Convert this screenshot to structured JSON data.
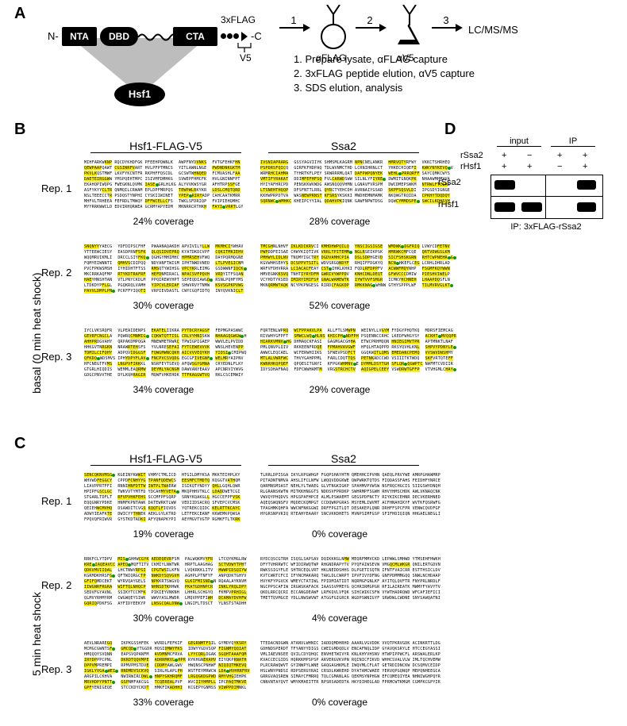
{
  "labels": {
    "A": "A",
    "B": "B",
    "C": "C",
    "D": "D"
  },
  "panelA": {
    "domains": [
      "NTA",
      "DBD",
      "CTA"
    ],
    "tag": "3xFLAG",
    "v5": "V5",
    "N": "N-",
    "C": "-C",
    "hsf1": "Hsf1",
    "beads": {
      "flag": "αFLAG",
      "v5": "αV5"
    },
    "out": "LC/MS/MS",
    "steps": [
      "1",
      "2",
      "3"
    ],
    "legend": [
      "1. Prepare lysate, αFLAG capture",
      "2. 3xFLAG peptide elution, αV5 capture",
      "3. SDS elution, analysis"
    ]
  },
  "panelB": {
    "side": "basal (0 min heat shock)",
    "col1": "Hsf1-FLAG-V5",
    "col2": "Ssa2",
    "reps": [
      "Rep. 1",
      "Rep. 2",
      "Rep. 3"
    ],
    "coverage": {
      "hsf1": [
        "24% coverage",
        "30% coverage",
        "34% coverage"
      ],
      "ssa2": [
        "28% coverage",
        "52% coverage",
        "29% coverage"
      ]
    }
  },
  "panelC": {
    "side": "5 min heat shock",
    "col1": "Hsf1-FLAG-V5",
    "col2": "Ssa2",
    "reps": [
      "Rep. 1",
      "Rep. 2",
      "Rep. 3"
    ],
    "coverage": {
      "hsf1": [
        "19% coverage",
        "30% coverage",
        "33% coverage"
      ],
      "ssa2": [
        "0% coverage",
        "4% coverage",
        "0% coverage"
      ]
    }
  },
  "panelD": {
    "header": {
      "input": "input",
      "ip": "IP"
    },
    "rows": [
      "rSsa2",
      "rHsf1"
    ],
    "signs": {
      "rSsa2": [
        "+",
        "−",
        "+",
        "+"
      ],
      "rHsf1": [
        "+",
        "+",
        "−",
        "+"
      ]
    },
    "rowlabels": [
      "rSsa2",
      "rHsf1"
    ],
    "bottom": "IP: 3xFLAG-rSsa2"
  },
  "seq": {
    "letters": "MNSQKIDVPVDSLLSQPKDLFLQTPKDVPLFTLAFDPNR"
  },
  "colors": {
    "black": "#000000",
    "highlight": "#fff200",
    "green": "#0a9b00",
    "shade": "#bdbdbd"
  }
}
